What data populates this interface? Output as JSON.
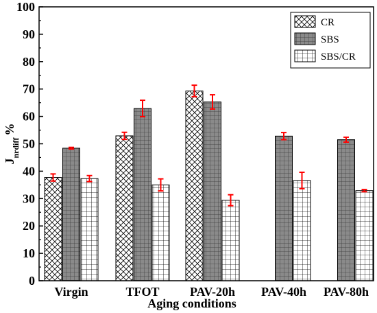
{
  "chart_data": {
    "type": "bar",
    "categories": [
      "Virgin",
      "TFOT",
      "PAV-20h",
      "PAV-40h",
      "PAV-80h"
    ],
    "xlabel": "Aging conditions",
    "ylabel": {
      "main": "J",
      "sub": "nrdiff",
      "suffix": "%"
    },
    "ylim": [
      0,
      100
    ],
    "yticks": [
      0,
      10,
      20,
      30,
      40,
      50,
      60,
      70,
      80,
      90,
      100
    ],
    "legend_position": "top-right",
    "error_bar_color": "#ff0000",
    "series": [
      {
        "name": "CR",
        "pattern": "crosshatch",
        "fill": "#ffffff",
        "values": [
          37.7,
          52.9,
          69.3,
          null,
          null
        ],
        "errors": [
          1.3,
          1.3,
          2.1,
          null,
          null
        ]
      },
      {
        "name": "SBS",
        "pattern": "gray-grid",
        "fill": "#8a8a8a",
        "values": [
          48.4,
          62.9,
          65.3,
          52.8,
          51.5
        ],
        "errors": [
          0.3,
          3.0,
          2.6,
          1.3,
          0.9
        ]
      },
      {
        "name": "SBS/CR",
        "pattern": "square-grid",
        "fill": "#ffffff",
        "values": [
          37.3,
          35.0,
          29.4,
          36.6,
          32.9
        ],
        "errors": [
          1.1,
          2.2,
          2.0,
          3.0,
          0.4
        ]
      }
    ]
  }
}
